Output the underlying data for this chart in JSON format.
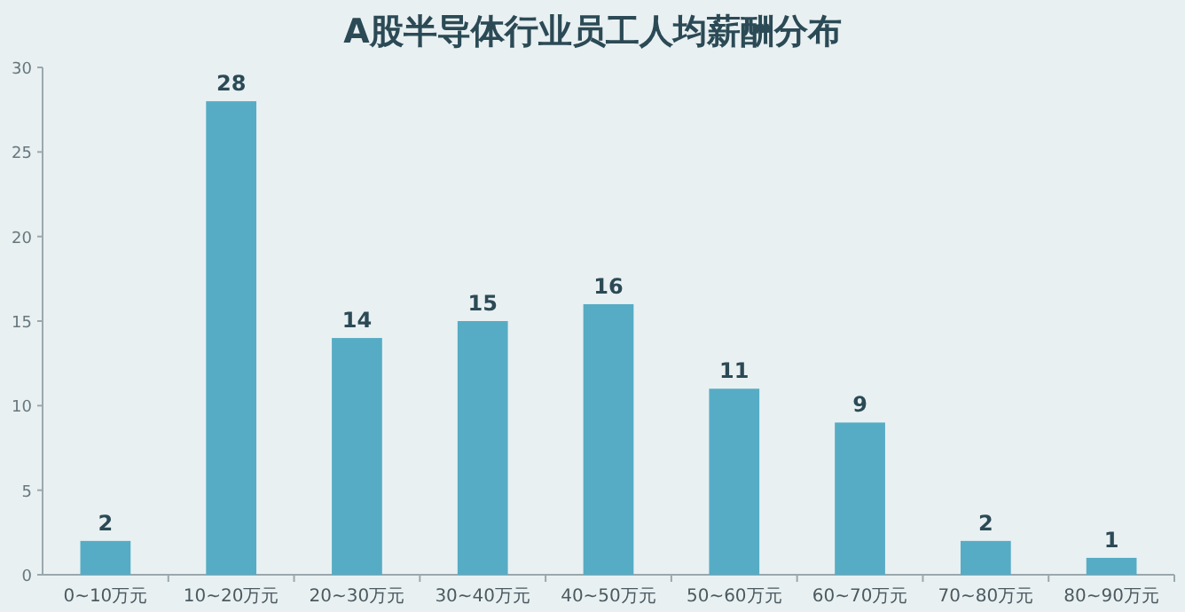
{
  "chart_data": {
    "type": "bar",
    "title": "A股半导体行业员工人均薪酬分布",
    "categories": [
      "0~10万元",
      "10~20万元",
      "20~30万元",
      "30~40万元",
      "40~50万元",
      "50~60万元",
      "60~70万元",
      "70~80万元",
      "80~90万元"
    ],
    "values": [
      2,
      28,
      14,
      15,
      16,
      11,
      9,
      2,
      1
    ],
    "color": "#56acc4",
    "ylim": [
      0,
      30
    ],
    "yticks": [
      0,
      5,
      10,
      15,
      20,
      25,
      30
    ],
    "data_labels": true,
    "grid": false
  }
}
